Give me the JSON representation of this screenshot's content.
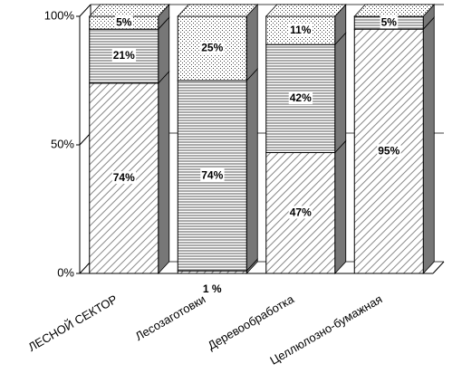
{
  "chart_data": {
    "type": "bar",
    "stacked": true,
    "categories": [
      "ЛЕСНОЙ СЕКТОР",
      "Лесозаготовки",
      "Деревообработка",
      "Целлюлозно-бумажная"
    ],
    "series": [
      {
        "pattern": "diagonal",
        "values": [
          74,
          1,
          47,
          95
        ],
        "value_labels": [
          "74%",
          "1 %",
          "47%",
          "95%"
        ]
      },
      {
        "pattern": "horizontal",
        "values": [
          21,
          74,
          42,
          5
        ],
        "value_labels": [
          "21%",
          "74%",
          "42%",
          "5%"
        ]
      },
      {
        "pattern": "dots",
        "values": [
          5,
          25,
          11,
          0
        ],
        "value_labels": [
          "5%",
          "25%",
          "11%",
          null
        ]
      }
    ],
    "ylim": [
      0,
      100
    ],
    "yticks": [
      {
        "value": 0,
        "label": "0%"
      },
      {
        "value": 50,
        "label": "50%"
      },
      {
        "value": 100,
        "label": "100%"
      }
    ],
    "grid": true
  }
}
